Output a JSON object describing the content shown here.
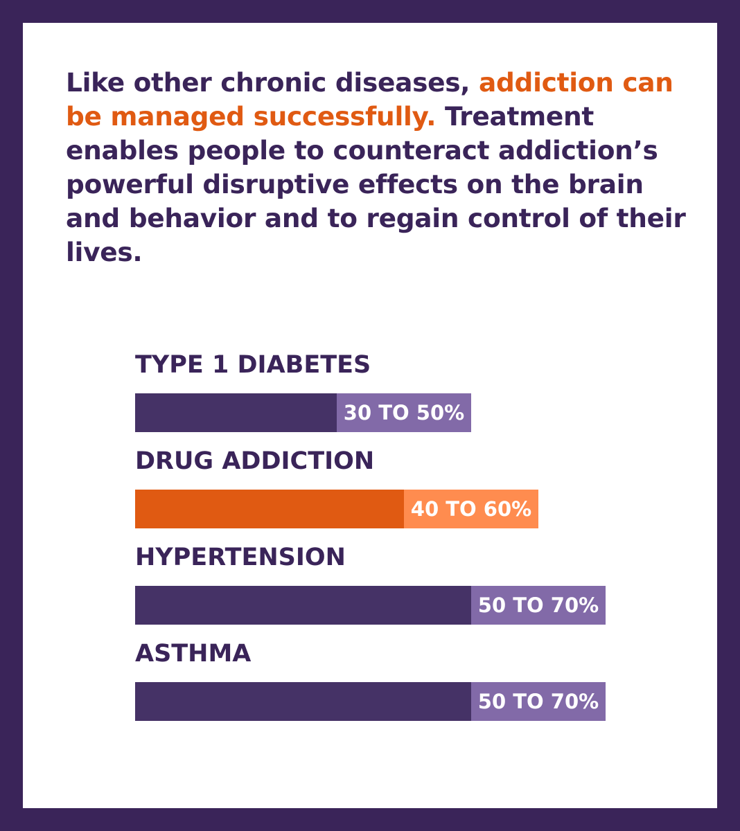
{
  "intro": {
    "part1": "Like other chronic diseases, ",
    "highlight": "addiction can be managed successfully.",
    "part2": " Treatment enables people to counteract addiction’s powerful disruptive effects on the brain and behavior and to regain control of their lives."
  },
  "colors": {
    "frame": "#3a2459",
    "text": "#3a2459",
    "highlight": "#e05a12"
  },
  "chart_data": {
    "type": "bar",
    "orientation": "horizontal",
    "value_unit": "%",
    "xlim": [
      0,
      100
    ],
    "categories": [
      "TYPE 1 DIABETES",
      "DRUG ADDICTION",
      "HYPERTENSION",
      "ASTHMA"
    ],
    "series": [
      {
        "low": [
          30,
          40,
          50,
          50
        ],
        "high": [
          50,
          60,
          70,
          70
        ],
        "labels": [
          "30 TO 50%",
          "40 TO 60%",
          "50 TO 70%",
          "50 TO 70%"
        ]
      }
    ],
    "bar_colors": [
      {
        "base": "#453266",
        "range": "#826aa8"
      },
      {
        "base": "#e05a12",
        "range": "#ff8c4f"
      },
      {
        "base": "#453266",
        "range": "#826aa8"
      },
      {
        "base": "#453266",
        "range": "#826aa8"
      }
    ]
  }
}
